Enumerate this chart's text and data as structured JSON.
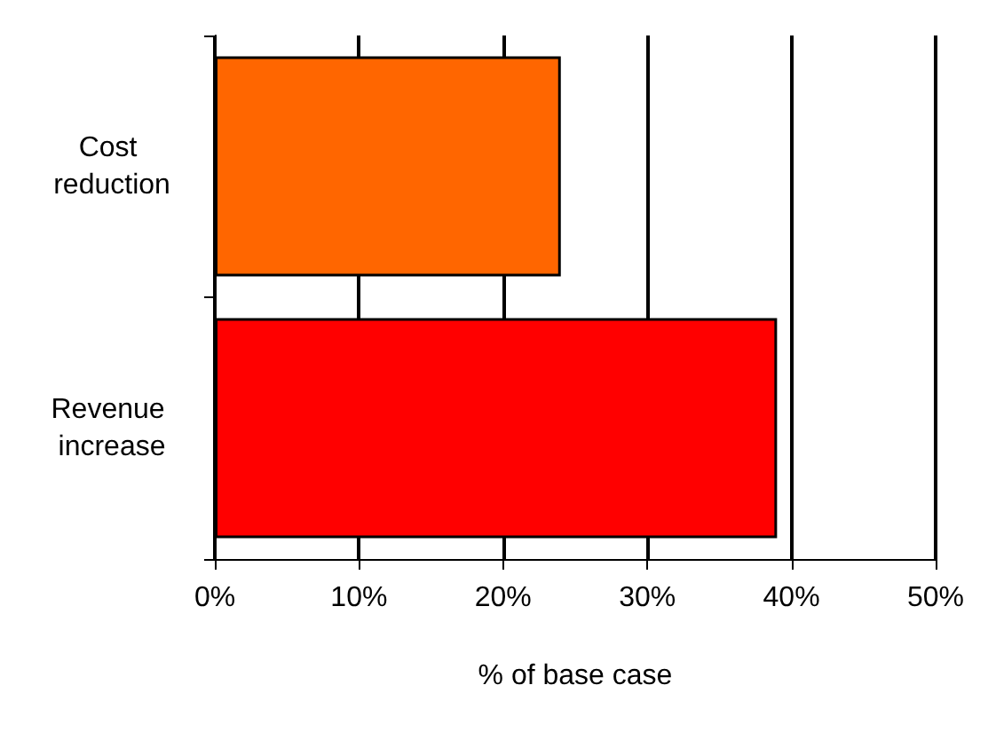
{
  "chart_data": {
    "type": "bar",
    "orientation": "horizontal",
    "categories": [
      "Cost reduction",
      "Revenue increase"
    ],
    "values": [
      24,
      39
    ],
    "colors": [
      "#ff6600",
      "#ff0000"
    ],
    "xlabel": "% of base case",
    "xlim": [
      0,
      50
    ],
    "xticks": [
      {
        "value": 0,
        "label": "0%"
      },
      {
        "value": 10,
        "label": "10%"
      },
      {
        "value": 20,
        "label": "20%"
      },
      {
        "value": 30,
        "label": "30%"
      },
      {
        "value": 40,
        "label": "40%"
      },
      {
        "value": 50,
        "label": "50%"
      }
    ],
    "grid": "x"
  }
}
